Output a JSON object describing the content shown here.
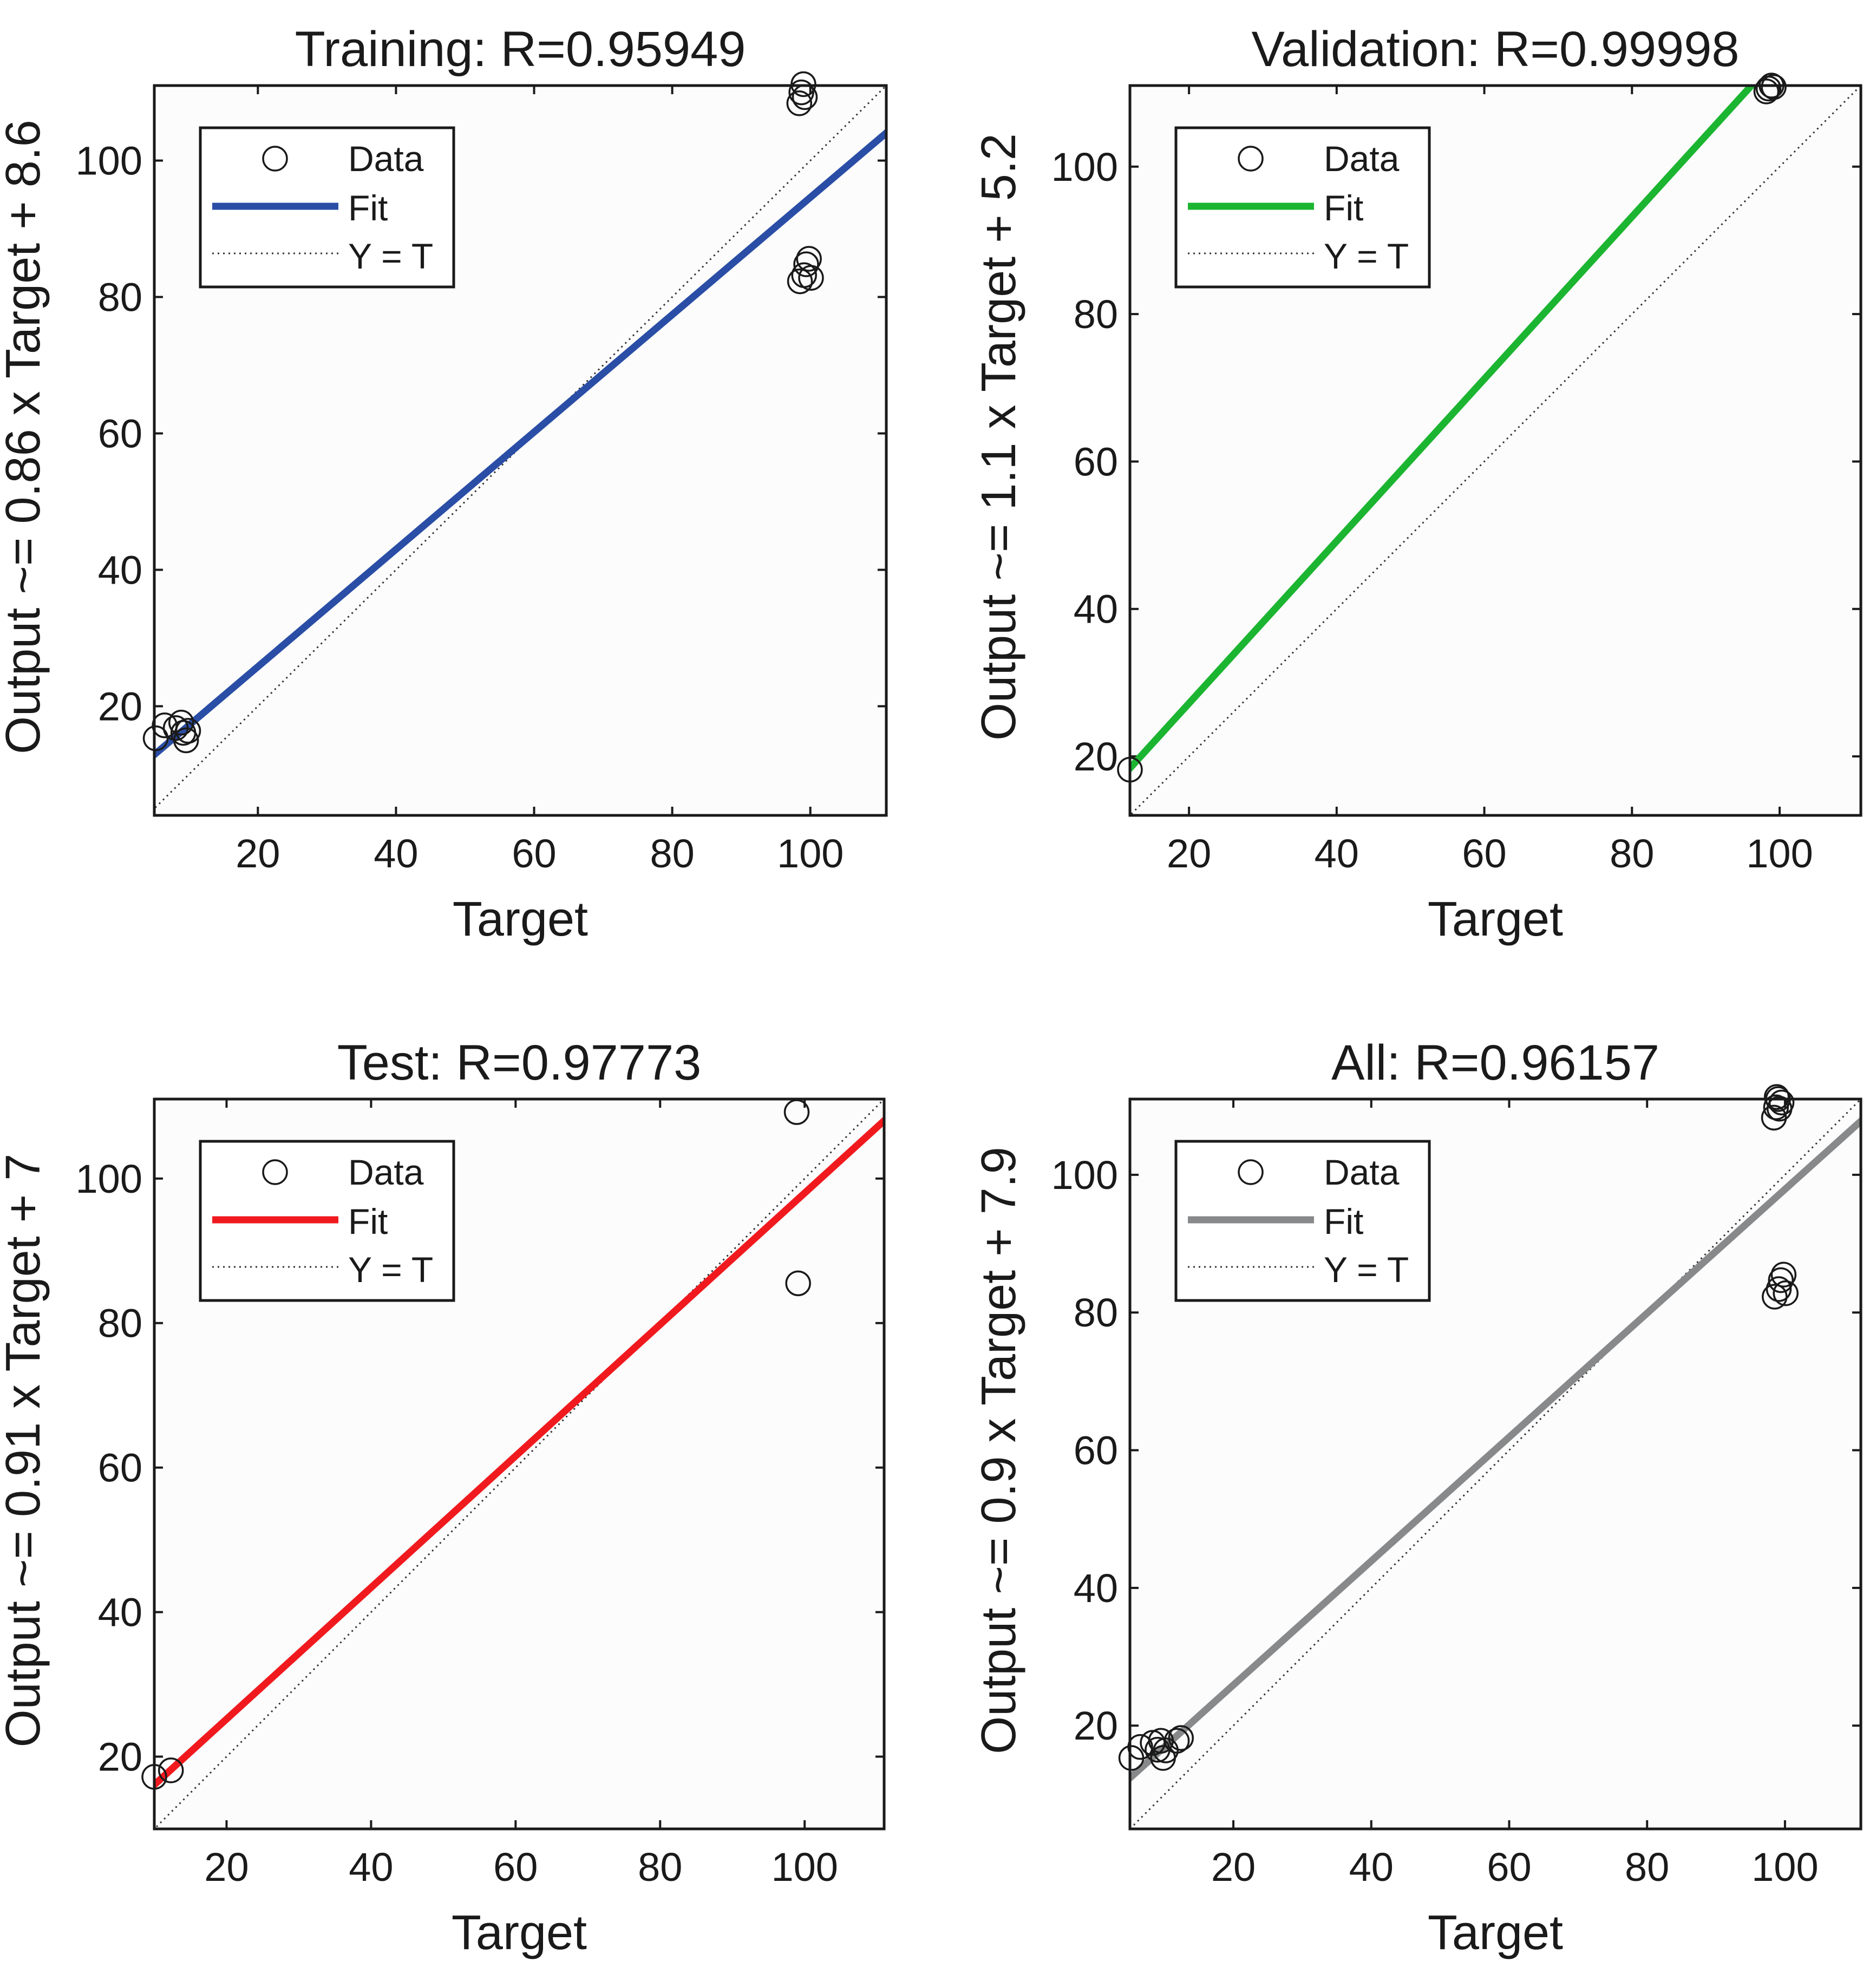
{
  "chart_data": [
    {
      "type": "scatter",
      "title": "Training: R=0.95949",
      "xlabel": "Target",
      "ylabel": "Output ~= 0.86 x Target + 8.6",
      "xlim": [
        5,
        111
      ],
      "ylim": [
        4,
        111
      ],
      "xticks": [
        20,
        40,
        60,
        80,
        100
      ],
      "yticks": [
        20,
        40,
        60,
        80,
        100
      ],
      "fit": {
        "slope": 0.86,
        "intercept": 8.6,
        "color": "#2a4ea6",
        "label": "Fit"
      },
      "legend": {
        "data_label": "Data",
        "fit_label": "Fit",
        "ideal_label": "Y = T",
        "placement": "top-left"
      },
      "points": [
        [
          5.2,
          15.3
        ],
        [
          6.5,
          17.2
        ],
        [
          8.1,
          16.8
        ],
        [
          8.9,
          17.6
        ],
        [
          9.2,
          16.1
        ],
        [
          9.6,
          15.0
        ],
        [
          9.9,
          16.4
        ],
        [
          98.4,
          108.4
        ],
        [
          98.7,
          110.0
        ],
        [
          99.0,
          111.2
        ],
        [
          99.2,
          109.3
        ],
        [
          98.5,
          82.3
        ],
        [
          99.1,
          83.2
        ],
        [
          99.4,
          84.8
        ],
        [
          99.8,
          85.6
        ],
        [
          100.1,
          82.8
        ]
      ]
    },
    {
      "type": "scatter",
      "title": "Validation: R=0.99998",
      "xlabel": "Target",
      "ylabel": "Output ~= 1.1 x Target + 5.2",
      "xlim": [
        12,
        111
      ],
      "ylim": [
        12,
        111
      ],
      "xticks": [
        20,
        40,
        60,
        80,
        100
      ],
      "yticks": [
        20,
        40,
        60,
        80,
        100
      ],
      "fit": {
        "slope": 1.1,
        "intercept": 5.2,
        "color": "#1cb531",
        "label": "Fit"
      },
      "legend": {
        "data_label": "Data",
        "fit_label": "Fit",
        "ideal_label": "Y = T",
        "placement": "top-left"
      },
      "points": [
        [
          12.0,
          18.2
        ],
        [
          98.2,
          110.2
        ],
        [
          98.5,
          110.6
        ],
        [
          98.9,
          111.0
        ],
        [
          99.2,
          110.8
        ]
      ]
    },
    {
      "type": "scatter",
      "title": "Test: R=0.97773",
      "xlabel": "Target",
      "ylabel": "Output ~= 0.91 x Target + 7",
      "xlim": [
        10,
        111
      ],
      "ylim": [
        10,
        111
      ],
      "xticks": [
        20,
        40,
        60,
        80,
        100
      ],
      "yticks": [
        20,
        40,
        60,
        80,
        100
      ],
      "fit": {
        "slope": 0.91,
        "intercept": 7,
        "color": "#f01a1e",
        "label": "Fit"
      },
      "legend": {
        "data_label": "Data",
        "fit_label": "Fit",
        "ideal_label": "Y = T",
        "placement": "top-left"
      },
      "points": [
        [
          10.0,
          17.2
        ],
        [
          12.3,
          18.1
        ],
        [
          98.9,
          109.2
        ],
        [
          99.1,
          85.5
        ]
      ]
    },
    {
      "type": "scatter",
      "title": "All: R=0.96157",
      "xlabel": "Target",
      "ylabel": "Output ~= 0.9 x Target + 7.9",
      "xlim": [
        5,
        111
      ],
      "ylim": [
        5,
        111
      ],
      "xticks": [
        20,
        40,
        60,
        80,
        100
      ],
      "yticks": [
        20,
        40,
        60,
        80,
        100
      ],
      "fit": {
        "slope": 0.9,
        "intercept": 7.9,
        "color": "#88898b",
        "label": "Fit"
      },
      "legend": {
        "data_label": "Data",
        "fit_label": "Fit",
        "ideal_label": "Y = T",
        "placement": "top-left"
      },
      "points": [
        [
          5.2,
          15.3
        ],
        [
          6.5,
          16.9
        ],
        [
          8.3,
          17.5
        ],
        [
          9.0,
          16.5
        ],
        [
          9.5,
          17.8
        ],
        [
          9.8,
          15.3
        ],
        [
          10.2,
          16.4
        ],
        [
          11.8,
          17.8
        ],
        [
          12.4,
          18.2
        ],
        [
          98.4,
          108.3
        ],
        [
          98.7,
          109.8
        ],
        [
          99.0,
          111.0
        ],
        [
          99.2,
          109.6
        ],
        [
          99.5,
          110.5
        ],
        [
          98.8,
          111.3
        ],
        [
          98.5,
          82.3
        ],
        [
          99.1,
          83.4
        ],
        [
          99.4,
          84.7
        ],
        [
          99.8,
          85.5
        ],
        [
          100.1,
          82.8
        ]
      ]
    }
  ]
}
